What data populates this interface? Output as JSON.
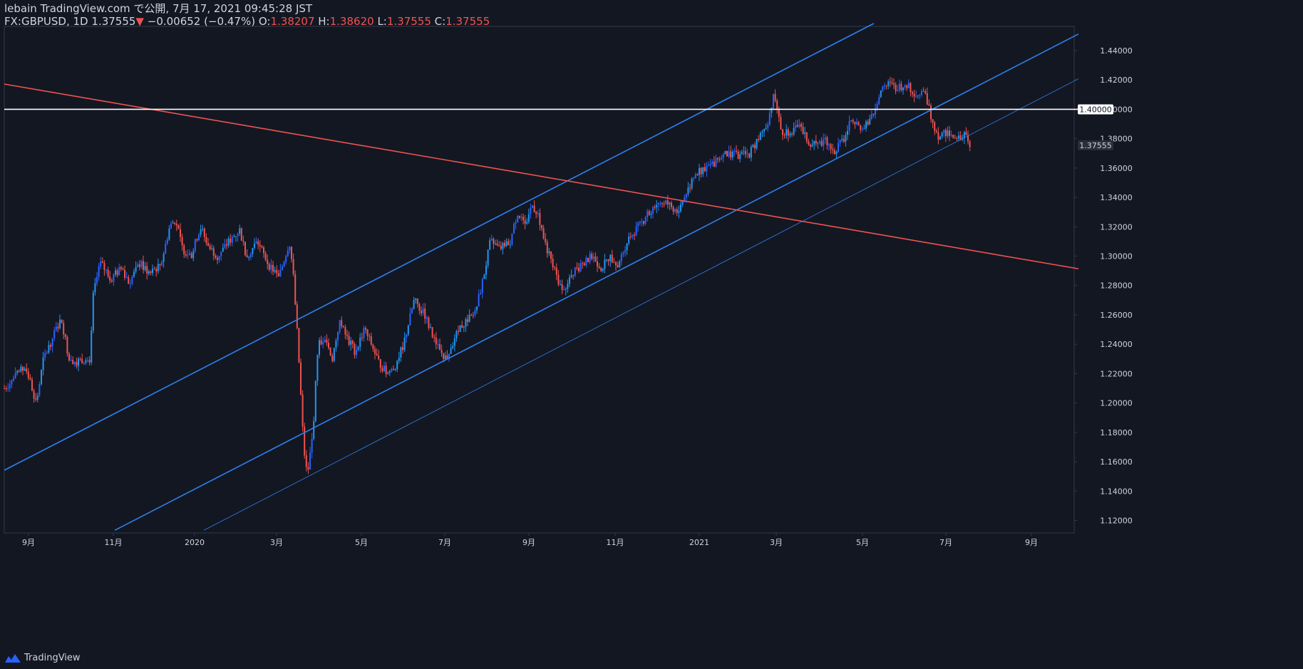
{
  "header": {
    "publisher": "lebain",
    "published_on": "TradingView.com で公開, 7月 17, 2021 09:45:28 JST",
    "symbol": "FX:GBPUSD",
    "interval": "1D",
    "last": "1.37555",
    "change": "−0.00652",
    "change_pct": "(−0.47%)",
    "open_label": "O:",
    "open": "1.38207",
    "high_label": "H:",
    "high": "1.38620",
    "low_label": "L:",
    "low": "1.37555",
    "close_label": "C:",
    "close": "1.37555"
  },
  "footer": {
    "brand": "TradingView",
    "logo_icon": "tradingview-logo-icon"
  },
  "colors": {
    "background": "#131722",
    "up": "#2962ff",
    "up_light": "#2196f3",
    "down": "#ef5350",
    "channel": "#2f80ed",
    "resistance": "#ef5350",
    "level": "#ffffff",
    "text": "#d1d4dc"
  },
  "chart_data": {
    "type": "candlestick",
    "symbol": "GBPUSD",
    "interval": "1D",
    "y_ticks": [
      "1.12000",
      "1.14000",
      "1.16000",
      "1.18000",
      "1.20000",
      "1.22000",
      "1.24000",
      "1.26000",
      "1.28000",
      "1.30000",
      "1.32000",
      "1.34000",
      "1.36000",
      "1.38000",
      "1.40000",
      "1.42000",
      "1.44000"
    ],
    "ylim": [
      1.1115,
      1.4565
    ],
    "x_ticks": [
      "9月",
      "11月",
      "2020",
      "3月",
      "5月",
      "7月",
      "9月",
      "11月",
      "2021",
      "3月",
      "5月",
      "7月",
      "9月"
    ],
    "price_labels": [
      {
        "text": "1.40000",
        "value": 1.4,
        "style": "level"
      },
      {
        "text": "1.37555",
        "value": 1.37555,
        "style": "last"
      }
    ],
    "price_path": [
      [
        0,
        1.21
      ],
      [
        30,
        1.225
      ],
      [
        45,
        1.2
      ],
      [
        55,
        1.23
      ],
      [
        70,
        1.247
      ],
      [
        80,
        1.258
      ],
      [
        90,
        1.232
      ],
      [
        100,
        1.228
      ],
      [
        112,
        1.23
      ],
      [
        120,
        1.225
      ],
      [
        125,
        1.275
      ],
      [
        135,
        1.295
      ],
      [
        150,
        1.285
      ],
      [
        165,
        1.292
      ],
      [
        175,
        1.282
      ],
      [
        190,
        1.295
      ],
      [
        205,
        1.288
      ],
      [
        220,
        1.295
      ],
      [
        232,
        1.32
      ],
      [
        240,
        1.325
      ],
      [
        250,
        1.305
      ],
      [
        262,
        1.3
      ],
      [
        275,
        1.32
      ],
      [
        288,
        1.305
      ],
      [
        300,
        1.3
      ],
      [
        315,
        1.31
      ],
      [
        330,
        1.318
      ],
      [
        340,
        1.3
      ],
      [
        355,
        1.31
      ],
      [
        370,
        1.295
      ],
      [
        385,
        1.285
      ],
      [
        400,
        1.31
      ],
      [
        405,
        1.29
      ],
      [
        412,
        1.24
      ],
      [
        420,
        1.17
      ],
      [
        425,
        1.15
      ],
      [
        433,
        1.18
      ],
      [
        440,
        1.24
      ],
      [
        450,
        1.245
      ],
      [
        460,
        1.23
      ],
      [
        470,
        1.255
      ],
      [
        480,
        1.245
      ],
      [
        492,
        1.235
      ],
      [
        505,
        1.25
      ],
      [
        515,
        1.24
      ],
      [
        525,
        1.228
      ],
      [
        537,
        1.22
      ],
      [
        548,
        1.225
      ],
      [
        560,
        1.24
      ],
      [
        575,
        1.27
      ],
      [
        590,
        1.26
      ],
      [
        605,
        1.24
      ],
      [
        620,
        1.23
      ],
      [
        632,
        1.245
      ],
      [
        645,
        1.255
      ],
      [
        660,
        1.26
      ],
      [
        672,
        1.285
      ],
      [
        682,
        1.31
      ],
      [
        695,
        1.305
      ],
      [
        710,
        1.31
      ],
      [
        720,
        1.33
      ],
      [
        730,
        1.32
      ],
      [
        740,
        1.335
      ],
      [
        748,
        1.33
      ],
      [
        758,
        1.31
      ],
      [
        768,
        1.295
      ],
      [
        780,
        1.28
      ],
      [
        790,
        1.28
      ],
      [
        800,
        1.29
      ],
      [
        812,
        1.295
      ],
      [
        825,
        1.3
      ],
      [
        838,
        1.292
      ],
      [
        850,
        1.3
      ],
      [
        862,
        1.295
      ],
      [
        875,
        1.312
      ],
      [
        890,
        1.32
      ],
      [
        905,
        1.33
      ],
      [
        918,
        1.337
      ],
      [
        930,
        1.336
      ],
      [
        945,
        1.33
      ],
      [
        958,
        1.345
      ],
      [
        970,
        1.355
      ],
      [
        980,
        1.36
      ],
      [
        992,
        1.362
      ],
      [
        1005,
        1.368
      ],
      [
        1018,
        1.37
      ],
      [
        1030,
        1.368
      ],
      [
        1045,
        1.37
      ],
      [
        1058,
        1.38
      ],
      [
        1070,
        1.39
      ],
      [
        1080,
        1.41
      ],
      [
        1090,
        1.385
      ],
      [
        1102,
        1.385
      ],
      [
        1115,
        1.388
      ],
      [
        1128,
        1.378
      ],
      [
        1140,
        1.375
      ],
      [
        1152,
        1.38
      ],
      [
        1165,
        1.372
      ],
      [
        1178,
        1.38
      ],
      [
        1190,
        1.395
      ],
      [
        1202,
        1.385
      ],
      [
        1215,
        1.392
      ],
      [
        1227,
        1.41
      ],
      [
        1240,
        1.417
      ],
      [
        1252,
        1.415
      ],
      [
        1265,
        1.417
      ],
      [
        1280,
        1.41
      ],
      [
        1292,
        1.41
      ],
      [
        1300,
        1.395
      ],
      [
        1310,
        1.382
      ],
      [
        1322,
        1.385
      ],
      [
        1335,
        1.378
      ],
      [
        1348,
        1.385
      ],
      [
        1355,
        1.376
      ]
    ],
    "lines": [
      {
        "name": "channel-upper",
        "style": "channel",
        "width": 1.6,
        "points": [
          [
            0,
            1.1542
          ],
          [
            1220,
            1.4585
          ]
        ]
      },
      {
        "name": "channel-lower",
        "style": "channel",
        "width": 1.6,
        "points": [
          [
            155,
            1.1133
          ],
          [
            1507,
            1.4513
          ]
        ]
      },
      {
        "name": "channel-parallel",
        "style": "channel",
        "width": 0.8,
        "points": [
          [
            280,
            1.1133
          ],
          [
            1507,
            1.4208
          ]
        ]
      },
      {
        "name": "resistance-downtrend",
        "style": "resistance",
        "width": 1.6,
        "points": [
          [
            0,
            1.4172
          ],
          [
            1507,
            1.2914
          ]
        ]
      },
      {
        "name": "level-1.40",
        "style": "level",
        "width": 1.6,
        "points": [
          [
            0,
            1.4
          ],
          [
            1507,
            1.4
          ]
        ]
      }
    ]
  }
}
